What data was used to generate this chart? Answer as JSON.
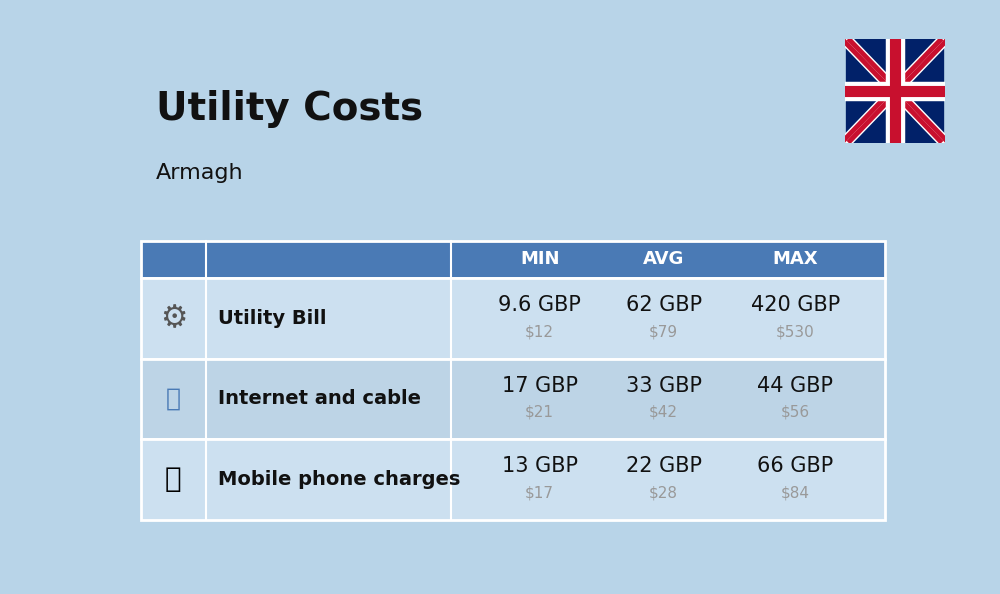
{
  "title": "Utility Costs",
  "subtitle": "Armagh",
  "background_color": "#b8d4e8",
  "header_bg_color": "#4a7ab5",
  "header_text_color": "#ffffff",
  "row_bg_color_1": "#cce0f0",
  "row_bg_color_2": "#bdd4e6",
  "header_labels": [
    "MIN",
    "AVG",
    "MAX"
  ],
  "rows": [
    {
      "label": "Utility Bill",
      "min_gbp": "9.6 GBP",
      "min_usd": "$12",
      "avg_gbp": "62 GBP",
      "avg_usd": "$79",
      "max_gbp": "420 GBP",
      "max_usd": "$530"
    },
    {
      "label": "Internet and cable",
      "min_gbp": "17 GBP",
      "min_usd": "$21",
      "avg_gbp": "33 GBP",
      "avg_usd": "$42",
      "max_gbp": "44 GBP",
      "max_usd": "$56"
    },
    {
      "label": "Mobile phone charges",
      "min_gbp": "13 GBP",
      "min_usd": "$17",
      "avg_gbp": "22 GBP",
      "avg_usd": "$28",
      "max_gbp": "66 GBP",
      "max_usd": "$84"
    }
  ],
  "gbp_fontsize": 15,
  "usd_fontsize": 11,
  "label_fontsize": 14,
  "usd_color": "#999999",
  "title_fontsize": 28,
  "subtitle_fontsize": 16,
  "header_fontsize": 13
}
